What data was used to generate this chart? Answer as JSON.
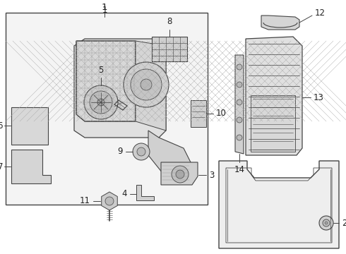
{
  "bg_color": "#ffffff",
  "fill_color": "#f0f0f0",
  "line_color": "#444444",
  "label_fontsize": 8.5,
  "fig_w": 4.9,
  "fig_h": 3.6,
  "dpi": 100
}
